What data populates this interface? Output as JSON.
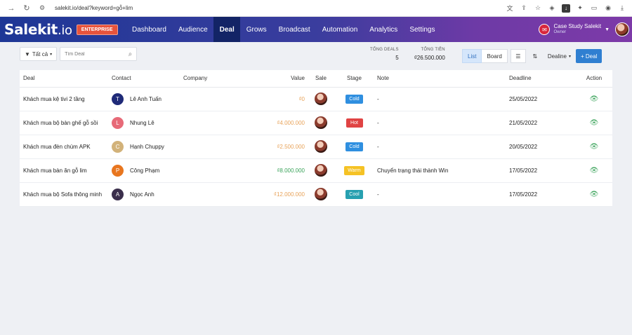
{
  "browser": {
    "url": "salekit.io/deal?keyword=gỗ+lim"
  },
  "header": {
    "logo_main": "Salekit",
    "logo_suffix": ".io",
    "plan_badge": "ENTERPRISE",
    "nav": [
      {
        "label": "Dashboard"
      },
      {
        "label": "Audience"
      },
      {
        "label": "Deal"
      },
      {
        "label": "Grows"
      },
      {
        "label": "Broadcast"
      },
      {
        "label": "Automation"
      },
      {
        "label": "Analytics"
      },
      {
        "label": "Settings"
      }
    ],
    "active_nav": "Deal",
    "account_name": "Case Study Salekit",
    "account_role": "Owner"
  },
  "toolbar": {
    "filter_label": "Tất cả",
    "search_placeholder": "Tìm Deal",
    "stats": {
      "total_deals_label": "TỔNG DEALS",
      "total_deals_value": "5",
      "total_money_label": "TỔNG TIỀN",
      "total_money_value": "₫26.500.000"
    },
    "view_list": "List",
    "view_board": "Board",
    "sort_label": "Dealine",
    "add_label": "+ Deal"
  },
  "table": {
    "headers": {
      "deal": "Deal",
      "contact": "Contact",
      "company": "Company",
      "value": "Value",
      "sale": "Sale",
      "stage": "Stage",
      "note": "Note",
      "deadline": "Deadline",
      "action": "Action"
    },
    "rows": [
      {
        "deal": "Khách mua kệ tivi 2 tầng",
        "contact_initial": "T",
        "contact_color": "#1f2a78",
        "contact": "Lê Anh Tuấn",
        "company": "",
        "value": "₫0",
        "value_color": "orange",
        "stage": "Cold",
        "stage_color": "#2f8fe0",
        "note": "-",
        "deadline": "25/05/2022"
      },
      {
        "deal": "Khách mua bộ bàn ghế gỗ sồi",
        "contact_initial": "L",
        "contact_color": "#e76a78",
        "contact": "Nhung Lê",
        "company": "",
        "value": "₫4.000.000",
        "value_color": "orange",
        "stage": "Hot",
        "stage_color": "#e04343",
        "note": "-",
        "deadline": "21/05/2022"
      },
      {
        "deal": "Khách mua đèn chùm APK",
        "contact_initial": "C",
        "contact_color": "#d2b27a",
        "contact": "Hạnh Chuppy",
        "company": "",
        "value": "₫2.500.000",
        "value_color": "orange",
        "stage": "Cold",
        "stage_color": "#2f8fe0",
        "note": "-",
        "deadline": "20/05/2022"
      },
      {
        "deal": "Khách mua bàn ăn gỗ lim",
        "contact_initial": "P",
        "contact_color": "#e8761f",
        "contact": "Công Phạm",
        "company": "",
        "value": "₫8.000.000",
        "value_color": "green",
        "stage": "Warm",
        "stage_color": "#f5c224",
        "note": "Chuyển trạng thái thành Win",
        "deadline": "17/05/2022"
      },
      {
        "deal": "Khách mua bộ Sofa thông minh",
        "contact_initial": "A",
        "contact_color": "#3b2f4c",
        "contact": "Ngọc Anh",
        "company": "",
        "value": "₫12.000.000",
        "value_color": "orange",
        "stage": "Cool",
        "stage_color": "#27a0b0",
        "note": "-",
        "deadline": "17/05/2022"
      }
    ]
  }
}
